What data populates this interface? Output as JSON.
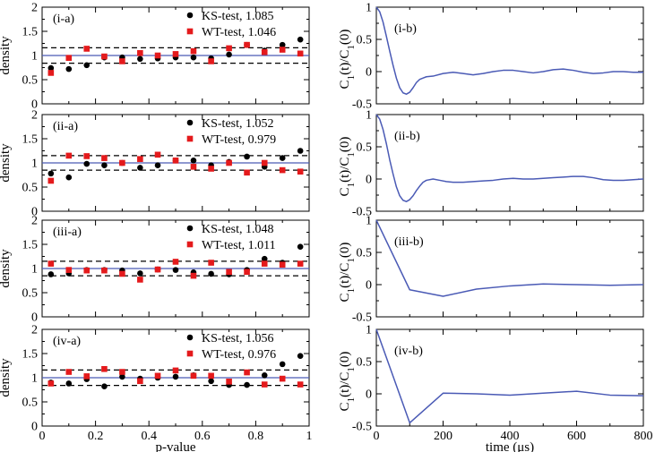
{
  "chart_data": [
    {
      "type": "scatter",
      "tag": "(i-a)",
      "ylabel": "density",
      "xlabel": "",
      "xlim": [
        0,
        1
      ],
      "ylim": [
        0,
        2
      ],
      "xticks": [
        "0",
        "0.2",
        "0.4",
        "0.6",
        "0.8",
        "1"
      ],
      "yticks": [
        "0",
        "0.5",
        "1",
        "1.5",
        "2"
      ],
      "show_xtick_labels": false,
      "reference_line": 1.0,
      "band": [
        0.84,
        1.16
      ],
      "series": [
        {
          "name": "KS-test, 1.085",
          "marker": "circle",
          "color": "#000000",
          "x": [
            0.033,
            0.1,
            0.167,
            0.233,
            0.3,
            0.367,
            0.433,
            0.5,
            0.567,
            0.633,
            0.7,
            0.767,
            0.833,
            0.9,
            0.967
          ],
          "y": [
            0.74,
            0.72,
            0.8,
            0.96,
            0.96,
            0.93,
            0.94,
            0.96,
            0.96,
            0.94,
            1.02,
            1.22,
            1.1,
            1.22,
            1.33
          ]
        },
        {
          "name": "WT-test, 1.046",
          "marker": "square",
          "color": "#e41a1c",
          "x": [
            0.033,
            0.1,
            0.167,
            0.233,
            0.3,
            0.367,
            0.433,
            0.5,
            0.567,
            0.633,
            0.7,
            0.767,
            0.833,
            0.9,
            0.967
          ],
          "y": [
            0.64,
            0.95,
            1.14,
            0.98,
            0.88,
            1.05,
            1.0,
            1.03,
            1.09,
            0.88,
            1.15,
            1.22,
            1.07,
            1.12,
            1.04
          ]
        }
      ]
    },
    {
      "type": "line",
      "tag": "(i-b)",
      "ylabel": "C1(t)/C1(0)",
      "xlabel": "",
      "xlim": [
        0,
        800
      ],
      "ylim": [
        -0.5,
        1
      ],
      "xticks": [
        "0",
        "200",
        "400",
        "600",
        "800"
      ],
      "yticks": [
        "-0.5",
        "0",
        "0.5",
        "1"
      ],
      "show_xtick_labels": false,
      "series": [
        {
          "color": "#4a5ab5",
          "x": [
            0,
            10,
            20,
            30,
            40,
            50,
            60,
            70,
            80,
            90,
            100,
            110,
            120,
            130,
            140,
            150,
            170,
            200,
            230,
            260,
            290,
            320,
            350,
            380,
            410,
            440,
            470,
            500,
            530,
            560,
            590,
            620,
            650,
            680,
            710,
            740,
            770,
            800
          ],
          "y": [
            1.0,
            0.93,
            0.77,
            0.55,
            0.32,
            0.1,
            -0.1,
            -0.25,
            -0.33,
            -0.35,
            -0.32,
            -0.25,
            -0.17,
            -0.12,
            -0.1,
            -0.08,
            -0.07,
            -0.03,
            -0.01,
            -0.03,
            -0.05,
            -0.03,
            0.0,
            0.02,
            0.02,
            0.0,
            -0.02,
            0.0,
            0.03,
            0.04,
            0.02,
            -0.01,
            -0.03,
            -0.02,
            0.0,
            0.0,
            -0.01,
            -0.01
          ]
        }
      ]
    },
    {
      "type": "scatter",
      "tag": "(ii-a)",
      "ylabel": "density",
      "xlabel": "",
      "xlim": [
        0,
        1
      ],
      "ylim": [
        0,
        2
      ],
      "xticks": [
        "0",
        "0.2",
        "0.4",
        "0.6",
        "0.8",
        "1"
      ],
      "yticks": [
        "0",
        "0.5",
        "1",
        "1.5",
        "2"
      ],
      "show_xtick_labels": false,
      "reference_line": 1.0,
      "band": [
        0.85,
        1.15
      ],
      "series": [
        {
          "name": "KS-test, 1.052",
          "marker": "circle",
          "color": "#000000",
          "x": [
            0.033,
            0.1,
            0.167,
            0.233,
            0.3,
            0.367,
            0.433,
            0.5,
            0.567,
            0.633,
            0.7,
            0.767,
            0.833,
            0.9,
            0.967
          ],
          "y": [
            0.78,
            0.7,
            0.98,
            0.95,
            1.0,
            0.9,
            0.95,
            1.05,
            1.05,
            0.95,
            1.02,
            1.13,
            0.92,
            1.1,
            1.25
          ]
        },
        {
          "name": "WT-test, 0.979",
          "marker": "square",
          "color": "#e41a1c",
          "x": [
            0.033,
            0.1,
            0.167,
            0.233,
            0.3,
            0.367,
            0.433,
            0.5,
            0.567,
            0.633,
            0.7,
            0.767,
            0.833,
            0.9,
            0.967
          ],
          "y": [
            0.63,
            1.15,
            1.14,
            1.1,
            1.0,
            1.08,
            1.17,
            1.05,
            0.92,
            0.88,
            1.0,
            0.8,
            1.0,
            0.85,
            0.82
          ]
        }
      ]
    },
    {
      "type": "line",
      "tag": "(ii-b)",
      "ylabel": "C1(t)/C1(0)",
      "xlabel": "",
      "xlim": [
        0,
        800
      ],
      "ylim": [
        -0.5,
        1
      ],
      "xticks": [
        "0",
        "200",
        "400",
        "600",
        "800"
      ],
      "yticks": [
        "-0.5",
        "0",
        "0.5",
        "1"
      ],
      "show_xtick_labels": false,
      "series": [
        {
          "color": "#4a5ab5",
          "x": [
            0,
            10,
            20,
            30,
            40,
            50,
            60,
            70,
            80,
            90,
            100,
            110,
            120,
            130,
            140,
            150,
            170,
            190,
            210,
            230,
            260,
            290,
            320,
            350,
            380,
            410,
            440,
            470,
            500,
            530,
            560,
            590,
            620,
            650,
            680,
            710,
            740,
            770,
            800
          ],
          "y": [
            1.0,
            0.93,
            0.77,
            0.55,
            0.3,
            0.08,
            -0.12,
            -0.26,
            -0.33,
            -0.35,
            -0.32,
            -0.26,
            -0.18,
            -0.11,
            -0.05,
            -0.02,
            0.0,
            -0.02,
            -0.04,
            -0.05,
            -0.05,
            -0.04,
            -0.03,
            -0.02,
            0.0,
            0.01,
            0.0,
            0.0,
            0.01,
            0.02,
            0.03,
            0.04,
            0.04,
            0.02,
            -0.01,
            -0.02,
            -0.02,
            -0.01,
            0.0
          ]
        }
      ]
    },
    {
      "type": "scatter",
      "tag": "(iii-a)",
      "ylabel": "density",
      "xlabel": "",
      "xlim": [
        0,
        1
      ],
      "ylim": [
        0,
        2
      ],
      "xticks": [
        "0",
        "0.2",
        "0.4",
        "0.6",
        "0.8",
        "1"
      ],
      "yticks": [
        "0",
        "0.5",
        "1",
        "1.5",
        "2"
      ],
      "show_xtick_labels": false,
      "reference_line": 1.0,
      "band": [
        0.85,
        1.15
      ],
      "series": [
        {
          "name": "KS-test, 1.048",
          "marker": "circle",
          "color": "#000000",
          "x": [
            0.033,
            0.1,
            0.167,
            0.233,
            0.3,
            0.367,
            0.433,
            0.5,
            0.567,
            0.633,
            0.7,
            0.767,
            0.833,
            0.9,
            0.967
          ],
          "y": [
            0.88,
            0.9,
            0.97,
            0.97,
            0.96,
            0.9,
            0.98,
            0.97,
            0.92,
            0.89,
            0.88,
            0.97,
            1.2,
            1.12,
            1.45
          ]
        },
        {
          "name": "WT-test, 1.011",
          "marker": "square",
          "color": "#e41a1c",
          "x": [
            0.033,
            0.1,
            0.167,
            0.233,
            0.3,
            0.367,
            0.433,
            0.5,
            0.567,
            0.633,
            0.7,
            0.767,
            0.833,
            0.9,
            0.967
          ],
          "y": [
            1.1,
            0.97,
            0.96,
            0.96,
            0.89,
            0.77,
            0.98,
            1.14,
            0.85,
            1.12,
            0.93,
            0.93,
            1.1,
            1.08,
            1.1
          ]
        }
      ]
    },
    {
      "type": "line",
      "tag": "(iii-b)",
      "ylabel": "C1(t)/C1(0)",
      "xlabel": "",
      "xlim": [
        0,
        800
      ],
      "ylim": [
        -0.5,
        1
      ],
      "xticks": [
        "0",
        "200",
        "400",
        "600",
        "800"
      ],
      "yticks": [
        "-0.5",
        "0",
        "0.5",
        "1"
      ],
      "show_xtick_labels": false,
      "series": [
        {
          "color": "#4a5ab5",
          "x": [
            0,
            100,
            200,
            300,
            400,
            500,
            600,
            700,
            800
          ],
          "y": [
            1.0,
            -0.08,
            -0.18,
            -0.07,
            -0.02,
            0.01,
            0.0,
            -0.01,
            0.0
          ]
        }
      ]
    },
    {
      "type": "scatter",
      "tag": "(iv-a)",
      "ylabel": "density",
      "xlabel": "p-value",
      "xlim": [
        0,
        1
      ],
      "ylim": [
        0,
        2
      ],
      "xticks": [
        "0",
        "0.2",
        "0.4",
        "0.6",
        "0.8",
        "1"
      ],
      "yticks": [
        "0",
        "0.5",
        "1",
        "1.5",
        "2"
      ],
      "show_xtick_labels": true,
      "reference_line": 1.0,
      "band": [
        0.84,
        1.16
      ],
      "series": [
        {
          "name": "KS-test, 1.056",
          "marker": "circle",
          "color": "#000000",
          "x": [
            0.033,
            0.1,
            0.167,
            0.233,
            0.3,
            0.367,
            0.433,
            0.5,
            0.567,
            0.633,
            0.7,
            0.767,
            0.833,
            0.9,
            0.967
          ],
          "y": [
            0.9,
            0.88,
            0.97,
            0.82,
            1.02,
            0.98,
            1.0,
            1.02,
            1.05,
            0.93,
            0.85,
            0.85,
            1.05,
            1.28,
            1.45
          ]
        },
        {
          "name": "WT-test, 0.976",
          "marker": "square",
          "color": "#e41a1c",
          "x": [
            0.033,
            0.1,
            0.167,
            0.233,
            0.3,
            0.367,
            0.433,
            0.5,
            0.567,
            0.633,
            0.7,
            0.767,
            0.833,
            0.9,
            0.967
          ],
          "y": [
            0.88,
            1.12,
            1.03,
            1.18,
            1.12,
            0.93,
            1.04,
            1.15,
            1.04,
            1.04,
            0.92,
            1.11,
            0.86,
            0.98,
            0.86
          ]
        }
      ]
    },
    {
      "type": "line",
      "tag": "(iv-b)",
      "ylabel": "C1(t)/C1(0)",
      "xlabel": "time (μs)",
      "xlim": [
        0,
        800
      ],
      "ylim": [
        -0.5,
        1
      ],
      "xticks": [
        "0",
        "200",
        "400",
        "600",
        "800"
      ],
      "yticks": [
        "-0.5",
        "0",
        "0.5",
        "1"
      ],
      "show_xtick_labels": true,
      "series": [
        {
          "color": "#4a5ab5",
          "x": [
            0,
            100,
            200,
            300,
            400,
            500,
            600,
            700,
            800
          ],
          "y": [
            1.0,
            -0.45,
            0.01,
            0.0,
            -0.02,
            0.01,
            0.04,
            -0.02,
            -0.03
          ]
        }
      ]
    }
  ]
}
